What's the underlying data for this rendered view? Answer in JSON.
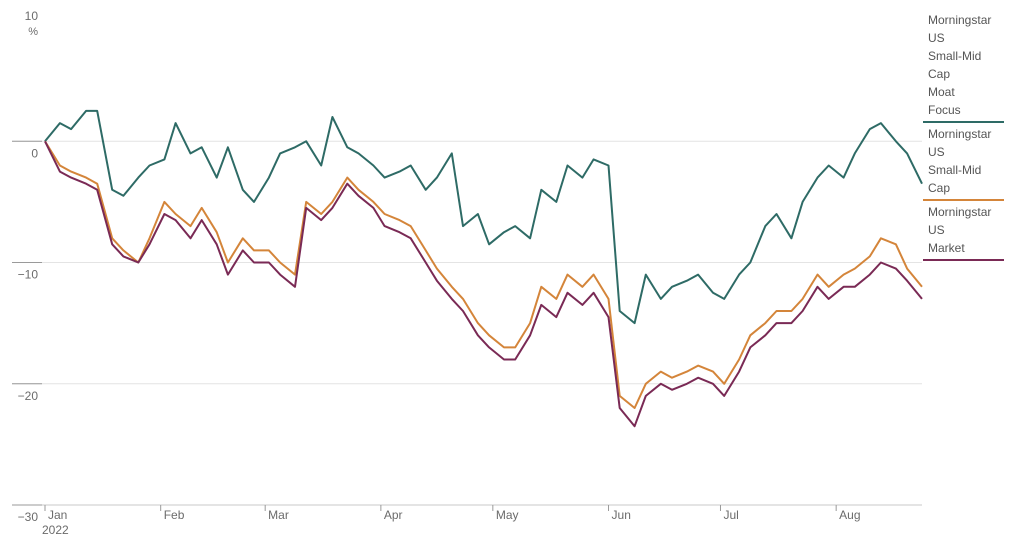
{
  "chart_data": {
    "type": "line",
    "title": "",
    "xlabel": "",
    "ylabel": "%",
    "ylim": [
      -30,
      10
    ],
    "yticks": [
      {
        "value": 10,
        "label": "10"
      },
      {
        "value": 0,
        "label": "0"
      },
      {
        "value": -10,
        "label": "−10"
      },
      {
        "value": -20,
        "label": "−20"
      },
      {
        "value": -30,
        "label": "−30"
      }
    ],
    "months": [
      {
        "label": "Jan",
        "day": 0
      },
      {
        "label": "Feb",
        "day": 31
      },
      {
        "label": "Mar",
        "day": 59
      },
      {
        "label": "Apr",
        "day": 90
      },
      {
        "label": "May",
        "day": 120
      },
      {
        "label": "Jun",
        "day": 151
      },
      {
        "label": "Jul",
        "day": 181
      },
      {
        "label": "Aug",
        "day": 212
      }
    ],
    "year_label": "2022",
    "grid": "horizontal",
    "legend_position": "right",
    "series": [
      {
        "name": "Morningstar US Small-Mid Cap Moat Focus",
        "legend_lines": [
          "Morningstar",
          "US",
          "Small-Mid",
          "Cap",
          "Moat",
          "Focus"
        ],
        "color": "#2e6b66",
        "x": [
          0,
          4,
          7,
          11,
          14,
          18,
          21,
          25,
          28,
          32,
          35,
          39,
          42,
          46,
          49,
          53,
          56,
          60,
          63,
          67,
          70,
          74,
          77,
          81,
          84,
          88,
          91,
          95,
          98,
          102,
          105,
          109,
          112,
          116,
          119,
          123,
          126,
          130,
          133,
          137,
          140,
          144,
          147,
          151,
          154,
          158,
          161,
          165,
          168,
          172,
          175,
          179,
          182,
          186,
          189,
          193,
          196,
          200,
          203,
          207,
          210,
          214,
          217,
          221,
          224,
          228,
          231,
          235
        ],
        "values": [
          0,
          1.5,
          1,
          2.5,
          2.5,
          -4,
          -4.5,
          -3,
          -2,
          -1.5,
          1.5,
          -1,
          -0.5,
          -3,
          -0.5,
          -4,
          -5,
          -3,
          -1,
          -0.5,
          0,
          -2,
          2,
          -0.5,
          -1,
          -2,
          -3,
          -2.5,
          -2,
          -4,
          -3,
          -1,
          -7,
          -6,
          -8.5,
          -7.5,
          -7,
          -8,
          -4,
          -5,
          -2,
          -3,
          -1.5,
          -2,
          -14,
          -15,
          -11,
          -13,
          -12,
          -11.5,
          -11,
          -12.5,
          -13,
          -11,
          -10,
          -7,
          -6,
          -8,
          -5,
          -3,
          -2,
          -3,
          -1,
          1,
          1.5,
          0,
          -1,
          -3.5
        ]
      },
      {
        "name": "Morningstar US Small-Mid Cap",
        "legend_lines": [
          "Morningstar",
          "US",
          "Small-Mid",
          "Cap"
        ],
        "color": "#d4853a",
        "x": [
          0,
          4,
          7,
          11,
          14,
          18,
          21,
          25,
          28,
          32,
          35,
          39,
          42,
          46,
          49,
          53,
          56,
          60,
          63,
          67,
          70,
          74,
          77,
          81,
          84,
          88,
          91,
          95,
          98,
          102,
          105,
          109,
          112,
          116,
          119,
          123,
          126,
          130,
          133,
          137,
          140,
          144,
          147,
          151,
          154,
          158,
          161,
          165,
          168,
          172,
          175,
          179,
          182,
          186,
          189,
          193,
          196,
          200,
          203,
          207,
          210,
          214,
          217,
          221,
          224,
          228,
          231,
          235
        ],
        "values": [
          0,
          -2,
          -2.5,
          -3,
          -3.5,
          -8,
          -9,
          -10,
          -8,
          -5,
          -6,
          -7,
          -5.5,
          -7.5,
          -10,
          -8,
          -9,
          -9,
          -10,
          -11,
          -5,
          -6,
          -5,
          -3,
          -4,
          -5,
          -6,
          -6.5,
          -7,
          -9,
          -10.5,
          -12,
          -13,
          -15,
          -16,
          -17,
          -17,
          -15,
          -12,
          -13,
          -11,
          -12,
          -11,
          -13,
          -21,
          -22,
          -20,
          -19,
          -19.5,
          -19,
          -18.5,
          -19,
          -20,
          -18,
          -16,
          -15,
          -14,
          -14,
          -13,
          -11,
          -12,
          -11,
          -10.5,
          -9.5,
          -8,
          -8.5,
          -10.5,
          -12
        ]
      },
      {
        "name": "Morningstar US Market",
        "legend_lines": [
          "Morningstar",
          "US",
          "Market"
        ],
        "color": "#7a2a55",
        "x": [
          0,
          4,
          7,
          11,
          14,
          18,
          21,
          25,
          28,
          32,
          35,
          39,
          42,
          46,
          49,
          53,
          56,
          60,
          63,
          67,
          70,
          74,
          77,
          81,
          84,
          88,
          91,
          95,
          98,
          102,
          105,
          109,
          112,
          116,
          119,
          123,
          126,
          130,
          133,
          137,
          140,
          144,
          147,
          151,
          154,
          158,
          161,
          165,
          168,
          172,
          175,
          179,
          182,
          186,
          189,
          193,
          196,
          200,
          203,
          207,
          210,
          214,
          217,
          221,
          224,
          228,
          231,
          235
        ],
        "values": [
          0,
          -2.5,
          -3,
          -3.5,
          -4,
          -8.5,
          -9.5,
          -10,
          -8.5,
          -6,
          -6.5,
          -8,
          -6.5,
          -8.5,
          -11,
          -9,
          -10,
          -10,
          -11,
          -12,
          -5.5,
          -6.5,
          -5.5,
          -3.5,
          -4.5,
          -5.5,
          -7,
          -7.5,
          -8,
          -10,
          -11.5,
          -13,
          -14,
          -16,
          -17,
          -18,
          -18,
          -16,
          -13.5,
          -14.5,
          -12.5,
          -13.5,
          -12.5,
          -14.5,
          -22,
          -23.5,
          -21,
          -20,
          -20.5,
          -20,
          -19.5,
          -20,
          -21,
          -19,
          -17,
          -16,
          -15,
          -15,
          -14,
          -12,
          -13,
          -12,
          -12,
          -11,
          -10,
          -10.5,
          -11.5,
          -13
        ]
      }
    ]
  }
}
